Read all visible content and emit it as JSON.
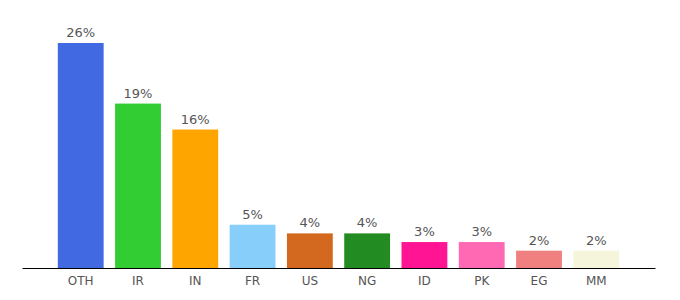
{
  "chart_data": {
    "type": "bar",
    "categories": [
      "OTH",
      "IR",
      "IN",
      "FR",
      "US",
      "NG",
      "ID",
      "PK",
      "EG",
      "MM"
    ],
    "values": [
      26,
      19,
      16,
      5,
      4,
      4,
      3,
      3,
      2,
      2
    ],
    "value_labels": [
      "26%",
      "19%",
      "16%",
      "5%",
      "4%",
      "4%",
      "3%",
      "3%",
      "2%",
      "2%"
    ],
    "colors": [
      "#4169e1",
      "#32cd32",
      "#ffa500",
      "#87cefa",
      "#d2691e",
      "#228b22",
      "#ff1493",
      "#ff69b4",
      "#f08080",
      "#f5f5dc"
    ],
    "ylim": [
      0,
      26
    ],
    "data_labels": true,
    "tick_labels": "x",
    "grid": false
  }
}
